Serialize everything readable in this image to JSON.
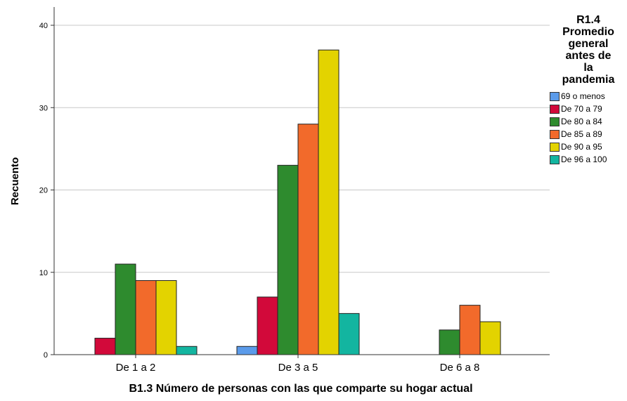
{
  "chart_data": {
    "type": "bar",
    "categories": [
      "De 1 a 2",
      "De 3 a 5",
      "De 6 a 8"
    ],
    "series": [
      {
        "name": "69 o menos",
        "color": "#5b9bea",
        "values": [
          0,
          1,
          0
        ]
      },
      {
        "name": "De 70 a 79",
        "color": "#d2093a",
        "values": [
          2,
          7,
          0
        ]
      },
      {
        "name": "De 80 a 84",
        "color": "#2e8b2e",
        "values": [
          11,
          23,
          3
        ]
      },
      {
        "name": "De 85 a 89",
        "color": "#f26a2b",
        "values": [
          9,
          28,
          6
        ]
      },
      {
        "name": "De 90 a 95",
        "color": "#e3d300",
        "values": [
          9,
          37,
          4
        ]
      },
      {
        "name": "De 96 a 100",
        "color": "#13b5a0",
        "values": [
          1,
          5,
          0
        ]
      }
    ],
    "xlabel": "B1.3 Número de personas con las que comparte su hogar actual",
    "ylabel": "Recuento",
    "ylim": [
      0,
      40
    ],
    "yticks": [
      0,
      10,
      20,
      30,
      40
    ],
    "grid": true,
    "legend": {
      "title_lines": [
        "R1.4",
        "Promedio",
        "general",
        "antes de",
        "la",
        "pandemia"
      ],
      "position": "right"
    }
  }
}
